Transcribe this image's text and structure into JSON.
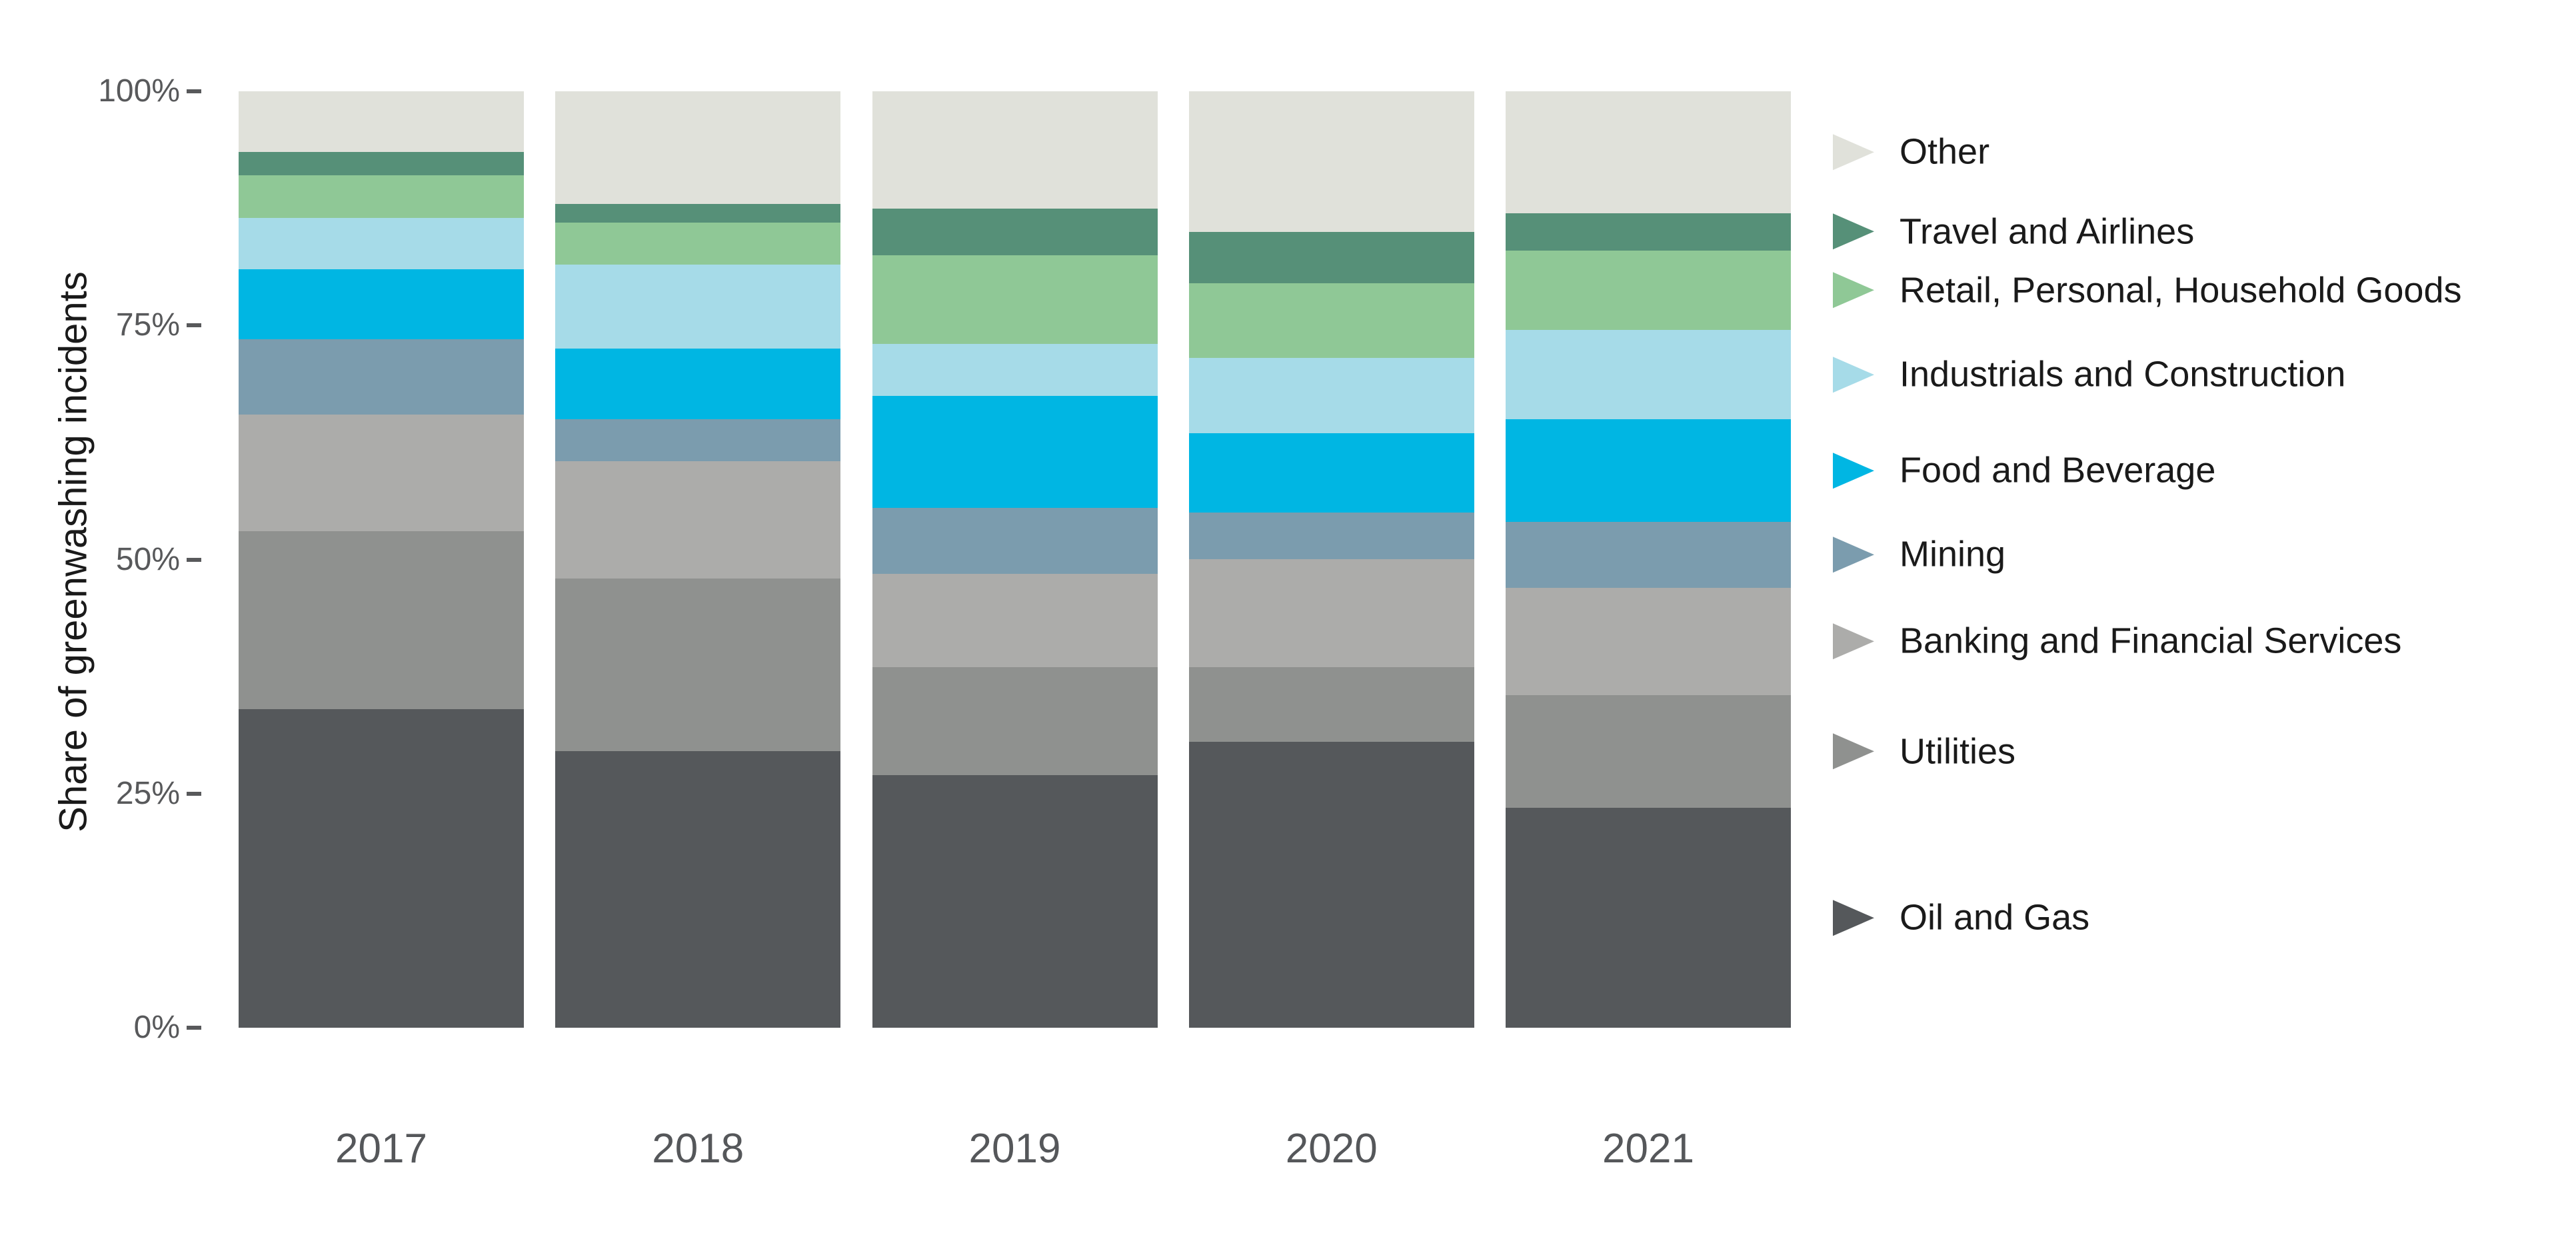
{
  "chart_data": {
    "type": "bar",
    "variant": "stacked-100-percent",
    "title": "",
    "xlabel": "",
    "ylabel": "Share of greenwashing incidents",
    "categories": [
      "2017",
      "2018",
      "2019",
      "2020",
      "2021"
    ],
    "y_ticks": [
      "100%",
      "75%",
      "50%",
      "25%",
      "0%"
    ],
    "ylim": [
      0,
      100
    ],
    "grid": false,
    "legend_position": "right",
    "series": [
      {
        "name": "Other",
        "color": "#e0e1da",
        "values": [
          6.5,
          12,
          12.5,
          15,
          13
        ]
      },
      {
        "name": "Travel and Airlines",
        "color": "#569078",
        "values": [
          2.5,
          2,
          5,
          5.5,
          4
        ]
      },
      {
        "name": "Retail, Personal, Household Goods",
        "color": "#8fc896",
        "values": [
          4.5,
          4.5,
          9.5,
          8,
          8.5
        ]
      },
      {
        "name": "Industrials and Construction",
        "color": "#a6dbe8",
        "values": [
          5.5,
          9,
          5.5,
          8,
          9.5
        ]
      },
      {
        "name": "Food and Beverage",
        "color": "#00b6e3",
        "values": [
          7.5,
          7.5,
          12,
          8.5,
          11
        ]
      },
      {
        "name": "Mining",
        "color": "#7b9cae",
        "values": [
          8,
          4.5,
          7,
          5,
          7
        ]
      },
      {
        "name": "Banking and Financial Services",
        "color": "#acacaa",
        "values": [
          12.5,
          12.5,
          10,
          11.5,
          11.5
        ]
      },
      {
        "name": "Utilities",
        "color": "#8f918f",
        "values": [
          19,
          18.5,
          11.5,
          8,
          12
        ]
      },
      {
        "name": "Oil and Gas",
        "color": "#55585b",
        "values": [
          34,
          29.5,
          27,
          30.5,
          23.5
        ]
      }
    ]
  },
  "colors": {
    "background": "#ffffff",
    "axis_text": "#58595b",
    "year_text": "#55575a",
    "label_text": "#1a1a1a"
  }
}
